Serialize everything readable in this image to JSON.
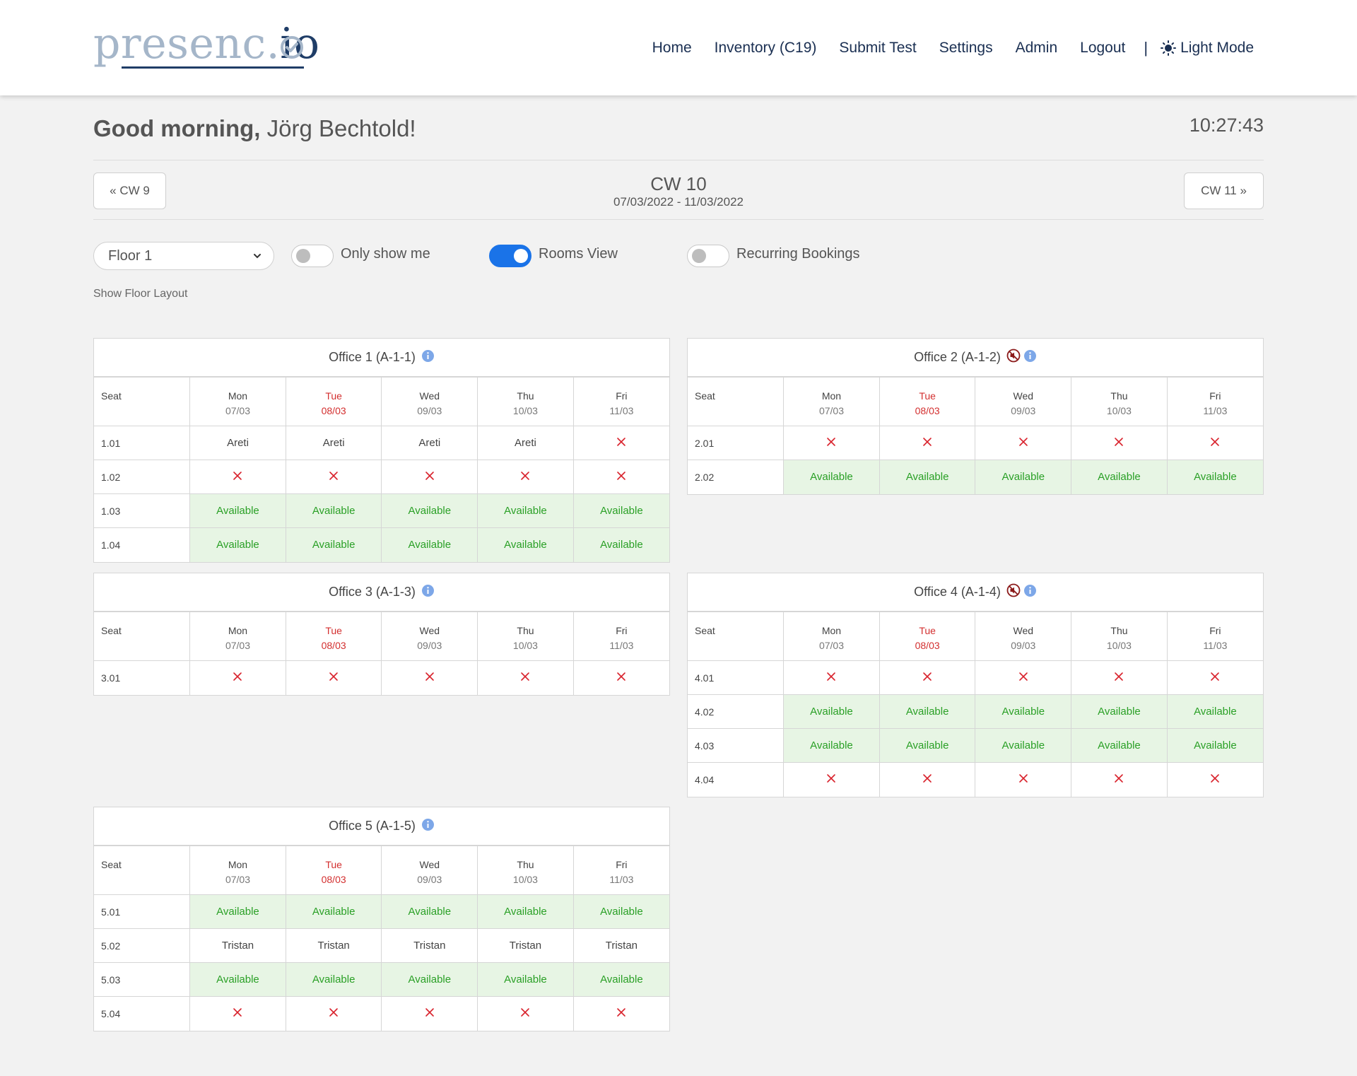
{
  "header": {
    "logo_light": "presenc.",
    "logo_dark": "io",
    "nav": [
      "Home",
      "Inventory (C19)",
      "Submit Test",
      "Settings",
      "Admin",
      "Logout"
    ],
    "separator": "|",
    "light_mode": "Light Mode"
  },
  "greeting": {
    "prefix": "Good morning,",
    "name": "Jörg Bechtold!"
  },
  "clock": "10:27:43",
  "week": {
    "prev": "« CW 9",
    "next": "CW 11 »",
    "current": "CW 10",
    "range": "07/03/2022 - 11/03/2022"
  },
  "controls": {
    "floor": "Floor 1",
    "only_show_me": {
      "label": "Only show me",
      "on": false
    },
    "rooms_view": {
      "label": "Rooms View",
      "on": true
    },
    "recurring": {
      "label": "Recurring Bookings",
      "on": false
    },
    "show_floor_layout": "Show Floor Layout"
  },
  "colors": {
    "accent": "#1a73e8",
    "available_bg": "#e7f5e4",
    "available_text": "#2aa026",
    "unavailable": "#d9232d",
    "today": "#d32f2f",
    "nav_text": "#1a2f52"
  },
  "days": [
    {
      "day": "Mon",
      "date": "07/03",
      "today": false
    },
    {
      "day": "Tue",
      "date": "08/03",
      "today": true
    },
    {
      "day": "Wed",
      "date": "09/03",
      "today": false
    },
    {
      "day": "Thu",
      "date": "10/03",
      "today": false
    },
    {
      "day": "Fri",
      "date": "11/03",
      "today": false
    }
  ],
  "seat_header": "Seat",
  "available_label": "Available",
  "unavailable_icon": "cross-icon",
  "offices": [
    {
      "title": "Office 1 (A-1-1)",
      "muted": false,
      "rows": [
        {
          "seat": "1.01",
          "cells": [
            "Areti",
            "Areti",
            "Areti",
            "Areti",
            "x"
          ]
        },
        {
          "seat": "1.02",
          "cells": [
            "x",
            "x",
            "x",
            "x",
            "x"
          ]
        },
        {
          "seat": "1.03",
          "cells": [
            "avail",
            "avail",
            "avail",
            "avail",
            "avail"
          ]
        },
        {
          "seat": "1.04",
          "cells": [
            "avail",
            "avail",
            "avail",
            "avail",
            "avail"
          ]
        }
      ]
    },
    {
      "title": "Office 2 (A-1-2)",
      "muted": true,
      "rows": [
        {
          "seat": "2.01",
          "cells": [
            "x",
            "x",
            "x",
            "x",
            "x"
          ]
        },
        {
          "seat": "2.02",
          "cells": [
            "avail",
            "avail",
            "avail",
            "avail",
            "avail"
          ]
        }
      ]
    },
    {
      "title": "Office 3 (A-1-3)",
      "muted": false,
      "rows": [
        {
          "seat": "3.01",
          "cells": [
            "x",
            "x",
            "x",
            "x",
            "x"
          ]
        }
      ]
    },
    {
      "title": "Office 4 (A-1-4)",
      "muted": true,
      "rows": [
        {
          "seat": "4.01",
          "cells": [
            "x",
            "x",
            "x",
            "x",
            "x"
          ]
        },
        {
          "seat": "4.02",
          "cells": [
            "avail",
            "avail",
            "avail",
            "avail",
            "avail"
          ]
        },
        {
          "seat": "4.03",
          "cells": [
            "avail",
            "avail",
            "avail",
            "avail",
            "avail"
          ]
        },
        {
          "seat": "4.04",
          "cells": [
            "x",
            "x",
            "x",
            "x",
            "x"
          ]
        }
      ]
    },
    {
      "title": "Office 5 (A-1-5)",
      "muted": false,
      "rows": [
        {
          "seat": "5.01",
          "cells": [
            "avail",
            "avail",
            "avail",
            "avail",
            "avail"
          ]
        },
        {
          "seat": "5.02",
          "cells": [
            "Tristan",
            "Tristan",
            "Tristan",
            "Tristan",
            "Tristan"
          ]
        },
        {
          "seat": "5.03",
          "cells": [
            "avail",
            "avail",
            "avail",
            "avail",
            "avail"
          ]
        },
        {
          "seat": "5.04",
          "cells": [
            "x",
            "x",
            "x",
            "x",
            "x"
          ]
        }
      ]
    }
  ]
}
